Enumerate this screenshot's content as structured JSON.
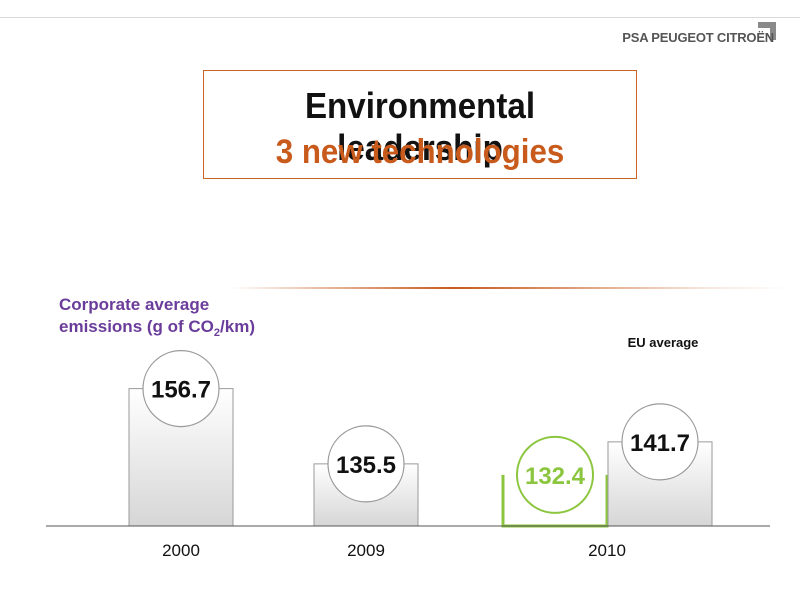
{
  "header": {
    "brand": "PSA PEUGEOT CITROËN"
  },
  "title": {
    "line1": "Environmental leadership",
    "line2": "3 new technologies"
  },
  "chart_data": {
    "type": "bar",
    "title": "Corporate average emissions (g of CO2/km)",
    "title_parts": [
      "Corporate average",
      "emissions (g of CO",
      "2",
      "/km)"
    ],
    "categories": [
      "2000",
      "2009",
      "2010"
    ],
    "series": [
      {
        "values": [
          156.7,
          135.5,
          132.4
        ]
      },
      {
        "name": "EU average",
        "values": [
          null,
          null,
          141.7
        ]
      }
    ],
    "value_labels": [
      "156.7",
      "135.5",
      "132.4",
      "141.7"
    ],
    "colors": {
      "bar_fill_top": "#ffffff",
      "bar_fill_bottom": "#d6d6d6",
      "bar_stroke": "#9a9a9a",
      "highlight": "#8cc63f",
      "axis": "#555555"
    },
    "ylim": [
      118,
      160
    ],
    "grid": false,
    "legend": "none"
  }
}
